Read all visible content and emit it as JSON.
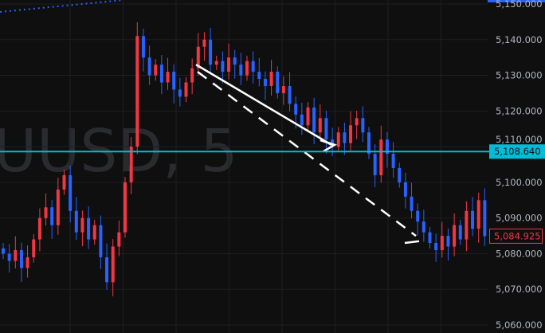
{
  "chart_data": {
    "type": "candlestick",
    "watermark": "UUSD, 5",
    "y_ticks": [
      5150,
      5140,
      5130,
      5120,
      5110,
      5100,
      5090,
      5080,
      5070,
      5060
    ],
    "y_tick_labels": [
      "5,150.000",
      "5,140.000",
      "5,130.000",
      "5,120.000",
      "5,110.000",
      "5,100.000",
      "5,090.000",
      "5,080.000",
      "5,070.000",
      "5,060.000"
    ],
    "ylim": [
      5059,
      5151
    ],
    "grid": true,
    "up_color": "#f23645",
    "down_color": "#2962ff",
    "horizontal_line": {
      "value": 5108.64,
      "label": "5,108.640",
      "color": "#00bcd4"
    },
    "last_price": {
      "value": 5084.925,
      "label": "5,084.925",
      "color": "#f23645"
    },
    "closes": [
      5080,
      5078,
      5081,
      5076,
      5079,
      5084,
      5090,
      5093,
      5088,
      5098,
      5102,
      5092,
      5086,
      5090,
      5084,
      5088,
      5079,
      5072,
      5082,
      5086,
      5100,
      5110,
      5141,
      5135,
      5130,
      5133,
      5128,
      5131,
      5126,
      5124,
      5128,
      5132,
      5138,
      5140,
      5133,
      5134,
      5131,
      5135,
      5133,
      5130,
      5134,
      5131,
      5129,
      5127,
      5131,
      5125,
      5127,
      5122,
      5119,
      5116,
      5121,
      5114,
      5118,
      5112,
      5110,
      5114,
      5111,
      5116,
      5118,
      5114,
      5108,
      5102,
      5112,
      5108,
      5104,
      5100,
      5096,
      5092,
      5089,
      5086,
      5083,
      5081,
      5085,
      5082,
      5088,
      5084,
      5092,
      5087,
      5095,
      5084.925
    ],
    "drawings": [
      {
        "type": "arrow",
        "color": "#ffffff",
        "from_price": 5133,
        "to_price": 5110
      },
      {
        "type": "dashed-line",
        "color": "#ffffff",
        "from_price": 5131,
        "to_price": 5083
      },
      {
        "type": "dotted-line",
        "color": "#2962ff"
      }
    ]
  }
}
